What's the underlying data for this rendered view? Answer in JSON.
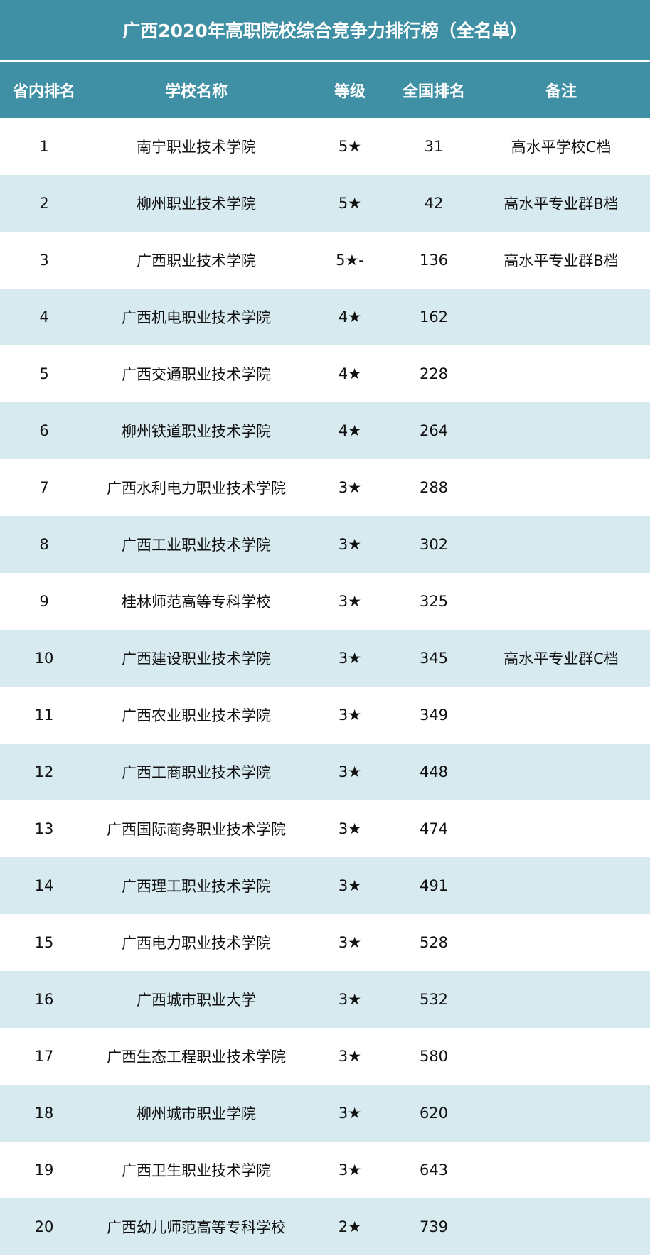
{
  "title": "广西2020年高职院校综合竞争力排行榜（全名单）",
  "colors": {
    "header": "#3f90a4",
    "stripe": "#d6eaf0"
  },
  "columns": [
    "省内排名",
    "学校名称",
    "等级",
    "全国排名",
    "备注"
  ],
  "rows": [
    [
      "1",
      "南宁职业技术学院",
      "5★",
      "31",
      "高水平学校C档"
    ],
    [
      "2",
      "柳州职业技术学院",
      "5★",
      "42",
      "高水平专业群B档"
    ],
    [
      "3",
      "广西职业技术学院",
      "5★-",
      "136",
      "高水平专业群B档"
    ],
    [
      "4",
      "广西机电职业技术学院",
      "4★",
      "162",
      ""
    ],
    [
      "5",
      "广西交通职业技术学院",
      "4★",
      "228",
      ""
    ],
    [
      "6",
      "柳州铁道职业技术学院",
      "4★",
      "264",
      ""
    ],
    [
      "7",
      "广西水利电力职业技术学院",
      "3★",
      "288",
      ""
    ],
    [
      "8",
      "广西工业职业技术学院",
      "3★",
      "302",
      ""
    ],
    [
      "9",
      "桂林师范高等专科学校",
      "3★",
      "325",
      ""
    ],
    [
      "10",
      "广西建设职业技术学院",
      "3★",
      "345",
      "高水平专业群C档"
    ],
    [
      "11",
      "广西农业职业技术学院",
      "3★",
      "349",
      ""
    ],
    [
      "12",
      "广西工商职业技术学院",
      "3★",
      "448",
      ""
    ],
    [
      "13",
      "广西国际商务职业技术学院",
      "3★",
      "474",
      ""
    ],
    [
      "14",
      "广西理工职业技术学院",
      "3★",
      "491",
      ""
    ],
    [
      "15",
      "广西电力职业技术学院",
      "3★",
      "528",
      ""
    ],
    [
      "16",
      "广西城市职业大学",
      "3★",
      "532",
      ""
    ],
    [
      "17",
      "广西生态工程职业技术学院",
      "3★",
      "580",
      ""
    ],
    [
      "18",
      "柳州城市职业学院",
      "3★",
      "620",
      ""
    ],
    [
      "19",
      "广西卫生职业技术学院",
      "3★",
      "643",
      ""
    ],
    [
      "20",
      "广西幼儿师范高等专科学校",
      "2★",
      "739",
      ""
    ]
  ]
}
